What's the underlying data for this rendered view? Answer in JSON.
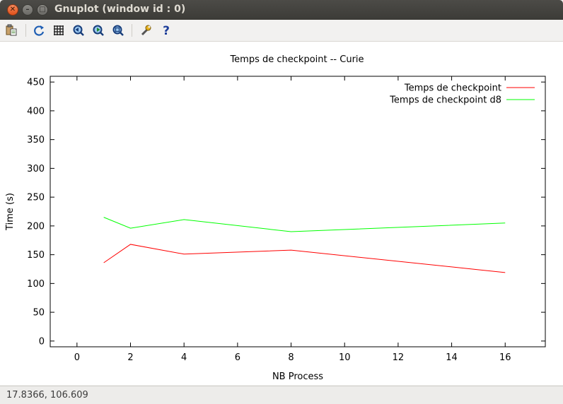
{
  "window": {
    "title": "Gnuplot (window id : 0)"
  },
  "toolbar": {
    "items": [
      {
        "name": "copy-to-clipboard-icon"
      },
      {
        "name": "replot-icon"
      },
      {
        "name": "grid-icon"
      },
      {
        "name": "zoom-previous-icon"
      },
      {
        "name": "zoom-next-icon"
      },
      {
        "name": "autoscale-icon"
      },
      {
        "name": "configure-icon"
      },
      {
        "name": "help-icon"
      }
    ]
  },
  "status": {
    "text": "17.8366,  106.609"
  },
  "colors": {
    "series1": "#ff0000",
    "series2": "#00ff00",
    "axis": "#000000"
  },
  "chart_data": {
    "type": "line",
    "title": "Temps de checkpoint -- Curie",
    "xlabel": "NB Process",
    "ylabel": "Time (s)",
    "xlim": [
      -1,
      17.5
    ],
    "ylim": [
      -10,
      460
    ],
    "xticks": [
      0,
      2,
      4,
      6,
      8,
      10,
      12,
      14,
      16
    ],
    "yticks": [
      0,
      50,
      100,
      150,
      200,
      250,
      300,
      350,
      400,
      450
    ],
    "legend": "top-right",
    "grid": false,
    "series": [
      {
        "name": "Temps de checkpoint",
        "color": "#ff0000",
        "x": [
          1,
          2,
          4,
          8,
          16
        ],
        "y": [
          136,
          168,
          151,
          158,
          119
        ]
      },
      {
        "name": "Temps de checkpoint d8",
        "color": "#00ff00",
        "x": [
          1,
          2,
          4,
          8,
          16
        ],
        "y": [
          215,
          196,
          211,
          190,
          205
        ]
      }
    ]
  }
}
